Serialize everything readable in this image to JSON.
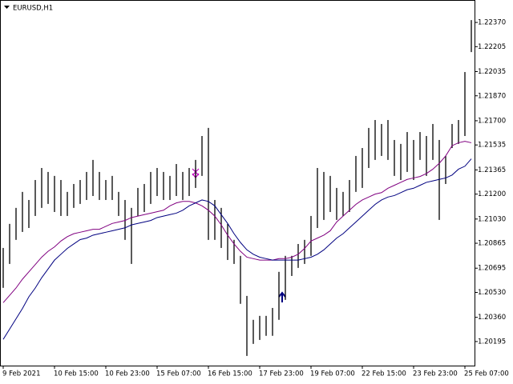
{
  "chart_data": {
    "type": "ohlc",
    "title": "EURUSD,H1",
    "categories": [
      "9 Feb 2021",
      null,
      null,
      null,
      null,
      null,
      null,
      null,
      "10 Feb 15:00",
      null,
      null,
      null,
      null,
      null,
      null,
      null,
      "10 Feb 23:00",
      null,
      null,
      null,
      null,
      null,
      null,
      null,
      "15 Feb 07:00",
      null,
      null,
      null,
      null,
      null,
      null,
      null,
      "16 Feb 15:00",
      null,
      null,
      null,
      null,
      null,
      null,
      null,
      "17 Feb 23:00",
      null,
      null,
      null,
      null,
      null,
      null,
      null,
      "19 Feb 07:00",
      null,
      null,
      null,
      null,
      null,
      null,
      null,
      "22 Feb 15:00",
      null,
      null,
      null,
      null,
      null,
      null,
      null,
      "23 Feb 23:00",
      null,
      null,
      null,
      null,
      null,
      null,
      null,
      "25 Feb 07:00",
      null
    ],
    "high": [
      1.20833,
      1.20997,
      1.21106,
      1.21215,
      1.2116,
      1.21296,
      1.21378,
      1.21351,
      1.21324,
      1.21296,
      1.21215,
      1.21269,
      1.21296,
      1.21351,
      1.21433,
      1.21351,
      1.21296,
      1.21324,
      1.21215,
      1.2116,
      1.21106,
      1.21242,
      1.21269,
      1.21351,
      1.21378,
      1.21351,
      1.21324,
      1.21405,
      1.21351,
      1.21378,
      1.21433,
      1.21596,
      1.21651,
      1.2116,
      1.21106,
      1.20997,
      1.20888,
      1.20779,
      1.20506,
      1.20343,
      1.2037,
      1.2037,
      1.20424,
      1.2067,
      1.20779,
      1.20779,
      1.2086,
      1.20888,
      1.21051,
      1.21378,
      1.21351,
      1.21324,
      1.21242,
      1.21215,
      1.21296,
      1.2146,
      1.21514,
      1.21651,
      1.21705,
      1.21678,
      1.21705,
      1.21569,
      1.21542,
      1.21623,
      1.21569,
      1.21623,
      1.21596,
      1.21678,
      1.21569,
      1.2146,
      1.21678,
      1.21705,
      1.22032,
      1.22386
    ],
    "low": [
      1.20561,
      1.20724,
      1.20888,
      1.20942,
      1.20969,
      1.21051,
      1.21106,
      1.21133,
      1.21078,
      1.21051,
      1.21051,
      1.21106,
      1.21133,
      1.2116,
      1.21187,
      1.2116,
      1.2116,
      1.2116,
      1.21051,
      1.20888,
      1.20724,
      1.21051,
      1.21078,
      1.21133,
      1.21187,
      1.2116,
      1.2116,
      1.21187,
      1.2116,
      1.21187,
      1.21242,
      1.21324,
      1.20888,
      1.20888,
      1.20833,
      1.20751,
      1.20724,
      1.20452,
      1.20097,
      1.20179,
      1.20206,
      1.20234,
      1.20234,
      1.20343,
      1.20479,
      1.20642,
      1.20697,
      1.20724,
      1.20779,
      1.20969,
      1.21024,
      1.21078,
      1.21024,
      1.21051,
      1.21078,
      1.21215,
      1.21242,
      1.21378,
      1.21433,
      1.2146,
      1.21433,
      1.21324,
      1.21296,
      1.21351,
      1.21296,
      1.21433,
      1.21324,
      1.21433,
      1.21024,
      1.21269,
      1.21514,
      1.21542,
      1.21596,
      1.22168
    ],
    "color": "#000000",
    "series": [
      {
        "color": "#800080",
        "values": [
          1.2046,
          1.2051,
          1.2056,
          1.2062,
          1.2067,
          1.2072,
          1.2077,
          1.2081,
          1.2084,
          1.2088,
          1.2091,
          1.2093,
          1.2094,
          1.2095,
          1.2096,
          1.2096,
          1.2098,
          1.21,
          1.2101,
          1.2102,
          1.2104,
          1.2105,
          1.2106,
          1.2107,
          1.2108,
          1.2109,
          1.2112,
          1.2114,
          1.2115,
          1.2115,
          1.2114,
          1.2112,
          1.2109,
          1.2105,
          1.2099,
          1.2092,
          1.2086,
          1.2081,
          1.2077,
          1.2076,
          1.2075,
          1.2075,
          1.2075,
          1.2076,
          1.2076,
          1.2077,
          1.2079,
          1.2083,
          1.2088,
          1.209,
          1.2092,
          1.2095,
          1.2101,
          1.2105,
          1.2109,
          1.2113,
          1.2116,
          1.2118,
          1.212,
          1.2121,
          1.2124,
          1.2126,
          1.2128,
          1.213,
          1.2131,
          1.2132,
          1.2134,
          1.2137,
          1.2141,
          1.2146,
          1.2153,
          1.2155,
          1.2156,
          1.2155
        ]
      },
      {
        "color": "#000080",
        "values": [
          1.2021,
          1.2028,
          1.2035,
          1.2042,
          1.205,
          1.2056,
          1.2063,
          1.2069,
          1.2075,
          1.2079,
          1.2083,
          1.2086,
          1.2089,
          1.209,
          1.2092,
          1.2093,
          1.2094,
          1.2095,
          1.2096,
          1.2097,
          1.2099,
          1.21,
          1.2101,
          1.2102,
          1.2104,
          1.2105,
          1.2106,
          1.2107,
          1.2109,
          1.2112,
          1.2114,
          1.2116,
          1.2115,
          1.2112,
          1.2106,
          1.21,
          1.2093,
          1.2087,
          1.2082,
          1.2079,
          1.2077,
          1.2076,
          1.2075,
          1.2075,
          1.2075,
          1.2075,
          1.2075,
          1.2076,
          1.2077,
          1.2079,
          1.2082,
          1.2086,
          1.209,
          1.2093,
          1.2097,
          1.2101,
          1.2105,
          1.2109,
          1.2113,
          1.2116,
          1.2118,
          1.2119,
          1.2121,
          1.2123,
          1.2124,
          1.2126,
          1.2128,
          1.2129,
          1.213,
          1.2131,
          1.2133,
          1.2137,
          1.2139,
          1.2144
        ]
      }
    ],
    "ylim": [
      1.20031,
      1.22523
    ],
    "yticks": [
      {
        "value": 1.2237,
        "label": "1.22370"
      },
      {
        "value": 1.22205,
        "label": "1.22205"
      },
      {
        "value": 1.22035,
        "label": "1.22035"
      },
      {
        "value": 1.2187,
        "label": "1.21870"
      },
      {
        "value": 1.217,
        "label": "1.21700"
      },
      {
        "value": 1.21535,
        "label": "1.21535"
      },
      {
        "value": 1.21365,
        "label": "1.21365"
      },
      {
        "value": 1.212,
        "label": "1.21200"
      },
      {
        "value": 1.2103,
        "label": "1.21030"
      },
      {
        "value": 1.20865,
        "label": "1.20865"
      },
      {
        "value": 1.20695,
        "label": "1.20695"
      },
      {
        "value": 1.2053,
        "label": "1.20530"
      },
      {
        "value": 1.2036,
        "label": "1.20360"
      },
      {
        "value": 1.20195,
        "label": "1.20195"
      }
    ]
  }
}
